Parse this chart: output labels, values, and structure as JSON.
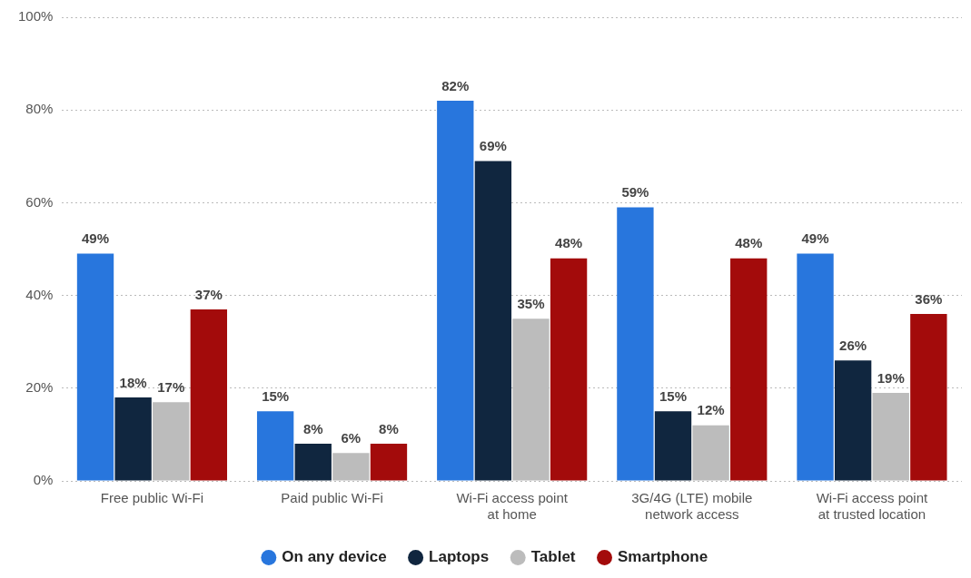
{
  "chart_data": {
    "type": "bar",
    "categories": [
      "Free public Wi-Fi",
      "Paid public Wi-Fi",
      "Wi-Fi access point at home",
      "3G/4G (LTE) mobile network access",
      "Wi-Fi access point at trusted location"
    ],
    "series": [
      {
        "name": "On any device",
        "color": "#2876dd",
        "values": [
          49,
          15,
          82,
          59,
          49
        ],
        "value_labels": [
          "49%",
          "15%",
          "82%",
          "59%",
          "49%"
        ]
      },
      {
        "name": "Laptops",
        "color": "#10263f",
        "values": [
          18,
          8,
          69,
          15,
          26
        ],
        "value_labels": [
          "18%",
          "8%",
          "69%",
          "15%",
          "26%"
        ]
      },
      {
        "name": "Tablet",
        "color": "#bcbcbc",
        "values": [
          17,
          6,
          35,
          12,
          19
        ],
        "value_labels": [
          "17%",
          "6%",
          "35%",
          "12%",
          "19%"
        ]
      },
      {
        "name": "Smartphone",
        "color": "#a30b0b",
        "values": [
          37,
          8,
          48,
          48,
          36
        ],
        "value_labels": [
          "37%",
          "8%",
          "48%",
          "48%",
          "36%"
        ]
      }
    ],
    "ylim": [
      0,
      100
    ],
    "yticks": [
      {
        "value": 0,
        "label": "0%"
      },
      {
        "value": 20,
        "label": "20%"
      },
      {
        "value": 40,
        "label": "40%"
      },
      {
        "value": 60,
        "label": "60%"
      },
      {
        "value": 80,
        "label": "80%"
      },
      {
        "value": 100,
        "label": "100%"
      }
    ],
    "grid": "y",
    "legend": "bottom"
  }
}
